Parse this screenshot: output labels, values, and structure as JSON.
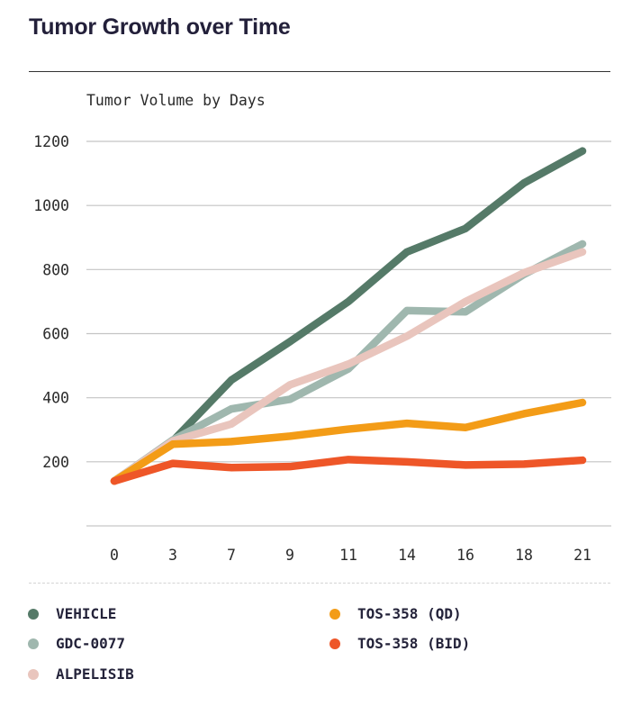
{
  "page": {
    "title": "Tumor Growth over Time"
  },
  "chart_data": {
    "type": "line",
    "title": "Tumor Volume by Days",
    "xlabel": "",
    "ylabel": "",
    "categories": [
      "0",
      "3",
      "7",
      "9",
      "11",
      "14",
      "16",
      "18",
      "21"
    ],
    "y_ticks": [
      200,
      400,
      600,
      800,
      1000,
      1200
    ],
    "ylim": [
      0,
      1200
    ],
    "grid": true,
    "legend_position": "bottom",
    "series": [
      {
        "name": "VEHICLE",
        "color": "#557a68",
        "values": [
          140,
          265,
          455,
          575,
          700,
          855,
          928,
          1070,
          1170
        ]
      },
      {
        "name": "GDC-0077",
        "color": "#9fb7ae",
        "values": [
          140,
          268,
          365,
          395,
          490,
          672,
          668,
          785,
          880
        ]
      },
      {
        "name": "ALPELISIB",
        "color": "#e9c5bd",
        "values": [
          140,
          265,
          318,
          440,
          505,
          592,
          700,
          790,
          855
        ]
      },
      {
        "name": "TOS-358 (QD)",
        "color": "#f39c17",
        "values": [
          140,
          255,
          263,
          280,
          302,
          320,
          307,
          350,
          385
        ]
      },
      {
        "name": "TOS-358 (BID)",
        "color": "#ee5628",
        "values": [
          140,
          195,
          182,
          185,
          207,
          200,
          190,
          193,
          205
        ]
      }
    ]
  }
}
